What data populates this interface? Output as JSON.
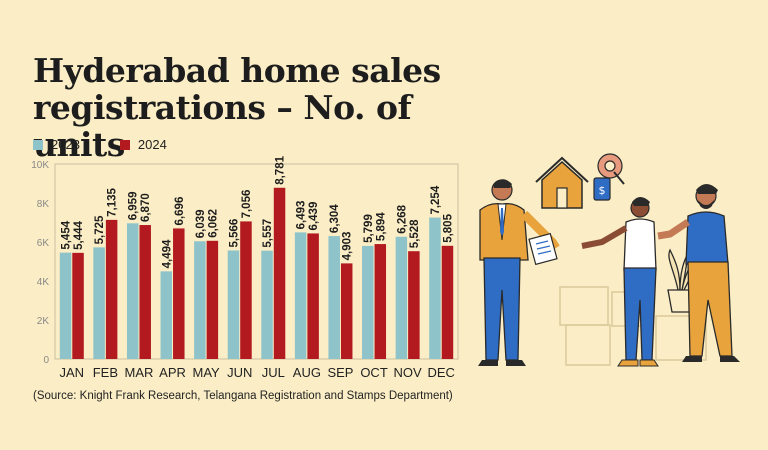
{
  "header": {
    "title": "Hyderabad home sales registrations – No. of units"
  },
  "legend": {
    "items": [
      {
        "label": "2023",
        "color": "#8ec3c9"
      },
      {
        "label": "2024",
        "color": "#b31a1f"
      }
    ]
  },
  "chart_data": {
    "type": "bar",
    "title": "Hyderabad home sales registrations – No. of units",
    "categories": [
      "JAN",
      "FEB",
      "MAR",
      "APR",
      "MAY",
      "JUN",
      "JUL",
      "AUG",
      "SEP",
      "OCT",
      "NOV",
      "DEC"
    ],
    "series": [
      {
        "name": "2023",
        "color": "#8ec3c9",
        "values": [
          5454,
          5725,
          6959,
          4494,
          6039,
          5566,
          5557,
          6493,
          6304,
          5799,
          6268,
          7254
        ],
        "labels": [
          "5,454",
          "5,725",
          "6,959",
          "4,494",
          "6,039",
          "5,566",
          "5,557",
          "6,493",
          "6,304",
          "5,799",
          "6,268",
          "7,254"
        ]
      },
      {
        "name": "2024",
        "color": "#b31a1f",
        "values": [
          5444,
          7135,
          6870,
          6696,
          6062,
          7056,
          8781,
          6439,
          4903,
          5894,
          5528,
          5805
        ],
        "labels": [
          "5,444",
          "7,135",
          "6,870",
          "6,696",
          "6,062",
          "7,056",
          "8,781",
          "6,439",
          "4,903",
          "5,894",
          "5,528",
          "5,805"
        ]
      }
    ],
    "yticks": [
      0,
      2000,
      4000,
      6000,
      8000,
      10000
    ],
    "ytick_labels": [
      "0",
      "2K",
      "4K",
      "6K",
      "8K",
      "10K"
    ],
    "ylim": [
      0,
      10000
    ],
    "grid": false,
    "legend_position": "top-left"
  },
  "footer": {
    "source": "(Source: Knight Frank Research, Telangana Registration and Stamps Department)"
  },
  "illustration": {
    "icons": [
      "house-sign-icon",
      "price-tag-icon",
      "key-icon",
      "contract-document-icon"
    ]
  }
}
